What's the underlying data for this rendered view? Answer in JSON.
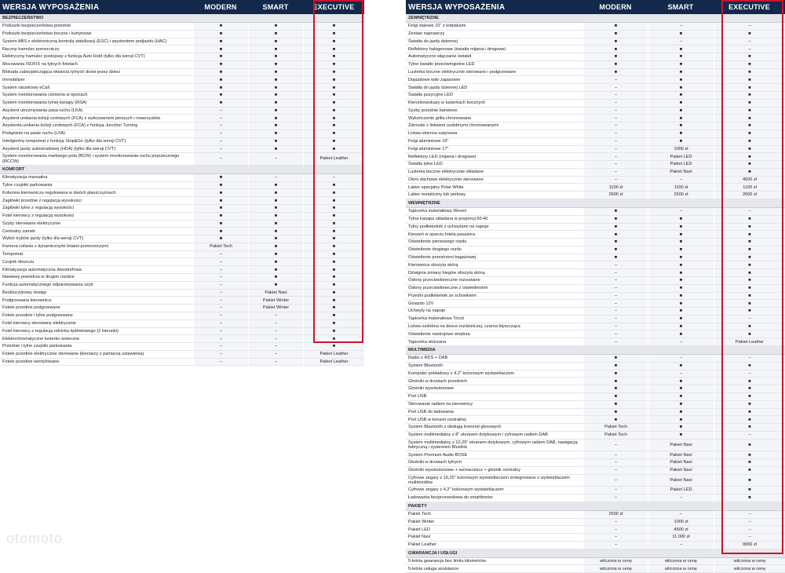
{
  "headers": [
    "WERSJA WYPOSAŻENIA",
    "MODERN",
    "SMART",
    "EXECUTIVE"
  ],
  "left_sections": [
    {
      "title": "BEZPIECZEŃSTWO",
      "rows": [
        [
          "Poduszki bezpieczeństwa przednie",
          "■",
          "■",
          "■"
        ],
        [
          "Poduszki bezpieczeństwa boczne i kurtynowe",
          "■",
          "■",
          "■"
        ],
        [
          "System ABS z elektroniczną kontrolą stabilizacji (ESC) i asystentem podjazdu (HAC)",
          "■",
          "■",
          "■"
        ],
        [
          "Ręczny hamulec pomocniczy",
          "■",
          "■",
          "■"
        ],
        [
          "Elektryczny hamulec postojowy z funkcją Auto Hold (tylko dla wersji CVT)",
          "■",
          "■",
          "■"
        ],
        [
          "Mocowania ISOFIX na tylnych fotelach",
          "■",
          "■",
          "■"
        ],
        [
          "Blokada zabezpieczająca otwarcia tylnych drzwi przez dzieci",
          "■",
          "■",
          "■"
        ],
        [
          "Immobilizer",
          "■",
          "■",
          "■"
        ],
        [
          "System ratunkowy eCall",
          "■",
          "■",
          "■"
        ],
        [
          "System monitorowania ciśnienia w oponach",
          "■",
          "■",
          "■"
        ],
        [
          "System monitorowania tylnej kanapy (RSA)",
          "■",
          "■",
          "■"
        ],
        [
          "Asystent utrzymywania pasa ruchu (LKA)",
          "–",
          "■",
          "■"
        ],
        [
          "Asystent unikania kolizji czołowych (FCA) z wykrywaniem pieszych i rowerzystów",
          "–",
          "■",
          "■"
        ],
        [
          "Asystenta unikania kolizji czołowych (FCA) z funkcją Junction Turning",
          "–",
          "■",
          "■"
        ],
        [
          "Podążanie na pasie ruchu (LFA)",
          "–",
          "■",
          "■"
        ],
        [
          "Inteligentny tempomat z funkcją Stop&Go (tylko dla wersji CVT)",
          "–",
          "■",
          "■"
        ],
        [
          "Asystent jazdy autostradowej (HDA) (tylko dla wersji CVT)",
          "–",
          "■",
          "■"
        ],
        [
          "System monitorowania martwego pola (BCW) i system monitorowania ruchu poprzecznego (RCCW)",
          "–",
          "–",
          "Pakiet Leather"
        ]
      ]
    },
    {
      "title": "KOMFORT",
      "rows": [
        [
          "Klimatyzacja manualna",
          "■",
          "–",
          "–"
        ],
        [
          "Tylne czujniki parkowania",
          "■",
          "■",
          "■"
        ],
        [
          "Kolumna kierownicza regulowana w dwóch płaszczyznach",
          "■",
          "■",
          "■"
        ],
        [
          "Zagłówki przednie z regulacją wysokości",
          "■",
          "■",
          "■"
        ],
        [
          "Zagłówki tylne z regulacją wysokości",
          "■",
          "■",
          "■"
        ],
        [
          "Fotel kierowcy z regulacją wysokości",
          "■",
          "■",
          "■"
        ],
        [
          "Szyby sterowane elektrycznie",
          "■",
          "■",
          "■"
        ],
        [
          "Centralny zamek",
          "■",
          "■",
          "■"
        ],
        [
          "Wybór trybów jazdy (tylko dla wersji CVT)",
          "■",
          "■",
          "■"
        ],
        [
          "Kamera cofania z dynamicznymi liniami pomocniczymi",
          "Pakiet Tech",
          "■",
          "■"
        ],
        [
          "Tempomat",
          "–",
          "■",
          "■"
        ],
        [
          "Czujnik deszczu",
          "–",
          "■",
          "■"
        ],
        [
          "Klimatyzacja automatyczna dwustrefowa",
          "–",
          "■",
          "■"
        ],
        [
          "Nawiewy powietrza w drugim rzędzie",
          "–",
          "■",
          "■"
        ],
        [
          "Funkcja automatycznego odparowywania szyb",
          "–",
          "■",
          "■"
        ],
        [
          "Bezkluczykowy dostęp",
          "–",
          "Pakiet Navi",
          "■"
        ],
        [
          "Podgrzewana kierownica",
          "–",
          "Pakiet Winter",
          "■"
        ],
        [
          "Fotele przednie podgrzewane",
          "–",
          "Pakiet Winter",
          "■"
        ],
        [
          "Fotele przednie i tylne podgrzewane",
          "–",
          "–",
          "■"
        ],
        [
          "Fotel kierowcy sterowany elektrycznie",
          "–",
          "–",
          "■"
        ],
        [
          "Fotel kierowcy z regulacją odcinka lędźwiowego (2 kierunki)",
          "–",
          "–",
          "■"
        ],
        [
          "Elektrochromatyczne lusterko wsteczne",
          "–",
          "–",
          "■"
        ],
        [
          "Przednie i tylne czujniki parkowania",
          "–",
          "–",
          "■"
        ],
        [
          "Fotele przednie elektrycznie sterowane (kierowcy z pamięcią ustawienia)",
          "–",
          "–",
          "Pakiet Leather"
        ],
        [
          "Fotele przednie wentylowane",
          "–",
          "–",
          "Pakiet Leather"
        ]
      ]
    }
  ],
  "right_sections": [
    {
      "title": "ZEWNĘTRZNE",
      "rows": [
        [
          "Felgi stalowe 15\" z kołpakami",
          "■",
          "–",
          "–"
        ],
        [
          "Zestaw naprawczy",
          "■",
          "■",
          "■"
        ],
        [
          "Światła do jazdy dziennej",
          "■",
          "–",
          "–"
        ],
        [
          "Reflektory halogenowe (światła mijania i drogowe)",
          "■",
          "■",
          "–"
        ],
        [
          "Automatyczne włączanie świateł",
          "■",
          "■",
          "■"
        ],
        [
          "Tylne światło przeciwmgielne LED",
          "■",
          "■",
          "■"
        ],
        [
          "Lusterka boczne elektrycznie sterowane i podgrzewane",
          "■",
          "■",
          "■"
        ],
        [
          "Dojazdowe koło zapasowe",
          "–",
          "■",
          "■"
        ],
        [
          "Światła do jazdy dziennej LED",
          "–",
          "■",
          "■"
        ],
        [
          "Światła pozycyjne LED",
          "–",
          "■",
          "■"
        ],
        [
          "Kierunkowskazy w lusterkach bocznych",
          "–",
          "■",
          "■"
        ],
        [
          "Szyby przednie barwione",
          "–",
          "■",
          "■"
        ],
        [
          "Wykończenie grilla chromowane",
          "–",
          "■",
          "■"
        ],
        [
          "Zderzaki z listwami ozdobnymi chromowanymi",
          "–",
          "■",
          "■"
        ],
        [
          "Listwa okienna satynowa",
          "–",
          "■",
          "■"
        ],
        [
          "Felgi aluminiowe 16\"",
          "–",
          "■",
          "■"
        ],
        [
          "Felgi aluminiowe 17\"",
          "–",
          "1000 zł",
          "■"
        ],
        [
          "Reflektory LED (mijania i drogowe)",
          "–",
          "Pakiet LED",
          "■"
        ],
        [
          "Światła tylne LED",
          "–",
          "Pakiet LED",
          "■"
        ],
        [
          "Lusterka boczne elektrycznie składane",
          "–",
          "Pakiet Navi",
          "■"
        ],
        [
          "Okno dachowe elektrycznie sterowane",
          "–",
          "–",
          "4500 zł"
        ],
        [
          "Lakier specjalny Polar White",
          "1100 zł",
          "1100 zł",
          "1100 zł"
        ],
        [
          "Lakier metaliczny lub perłowy",
          "2600 zł",
          "2600 zł",
          "2600 zł"
        ]
      ]
    },
    {
      "title": "WEWNĘTRZNE",
      "rows": [
        [
          "Tapicerka materiałowa Woven",
          "■",
          "–",
          "–"
        ],
        [
          "Tylna kanapa składana w proporcji 60:40",
          "■",
          "■",
          "■"
        ],
        [
          "Tylny podłokietnik z uchwytami na napoje",
          "■",
          "■",
          "■"
        ],
        [
          "Kieszeń w oparciu fotela pasażera",
          "■",
          "■",
          "■"
        ],
        [
          "Oświetlenie pierwszego rzędu",
          "■",
          "■",
          "■"
        ],
        [
          "Oświetlenie drugiego rzędu",
          "■",
          "■",
          "■"
        ],
        [
          "Oświetlenie przestrzeni bagażowej",
          "■",
          "■",
          "■"
        ],
        [
          "Kierownica obszyta skórą",
          "–",
          "■",
          "■"
        ],
        [
          "Dźwignia zmiany biegów obszyta skórą",
          "–",
          "■",
          "■"
        ],
        [
          "Osłony przeciwsłoneczne rozsuwane",
          "–",
          "■",
          "■"
        ],
        [
          "Osłony przeciwsłoneczne z oświetleniem",
          "–",
          "■",
          "■"
        ],
        [
          "Przedni podłokietnik ze schowkiem",
          "–",
          "■",
          "■"
        ],
        [
          "Gniazdo 12V",
          "–",
          "■",
          "■"
        ],
        [
          "Uchwyty na napoje",
          "–",
          "■",
          "■"
        ],
        [
          "Tapicerka materiałowa Tricot",
          "–",
          "■",
          "–"
        ],
        [
          "Listwa ozdobna na desce rozdzielczej, czarna błyszcząca",
          "–",
          "■",
          "■"
        ],
        [
          "Oświetlenie nastrojowe wnętrza",
          "–",
          "■",
          "■"
        ],
        [
          "Tapicerka skórzana",
          "–",
          "–",
          "Pakiet Leather"
        ]
      ]
    },
    {
      "title": "MULTIMEDIA",
      "rows": [
        [
          "Radio z RDS + DAB",
          "■",
          "–",
          "–"
        ],
        [
          "System Bluetooth",
          "■",
          "■",
          "■"
        ],
        [
          "Komputer pokładowy z 4,2\" kolorowym wyświetlaczem",
          "■",
          "–",
          "–"
        ],
        [
          "Głośniki w drzwiach przednich",
          "■",
          "■",
          "■"
        ],
        [
          "Głośniki wysokotonowe",
          "■",
          "■",
          "■"
        ],
        [
          "Port USB",
          "■",
          "■",
          "■"
        ],
        [
          "Sterowanie radiem na kierownicy",
          "■",
          "■",
          "■"
        ],
        [
          "Port USB do ładowania",
          "■",
          "■",
          "■"
        ],
        [
          "Port USB w konsoli centralnej",
          "■",
          "■",
          "■"
        ],
        [
          "System Bluetooth z obsługą komend głosowych",
          "Pakiet Tech",
          "■",
          "■"
        ],
        [
          "System multimedialny z 8\" ekranem dotykowym i cyfrowym radiem DAB",
          "Pakiet Tech",
          "■",
          "–"
        ],
        [
          "System multimedialny z 10,25\" ekranem dotykowym, cyfrowym radiem DAB, nawigacją fabryczną i systemem Bluelink",
          "–",
          "Pakiet Navi",
          "■"
        ],
        [
          "System Premium Audio BOSE",
          "–",
          "Pakiet Navi",
          "■"
        ],
        [
          "Głośniki w drzwiach tylnych",
          "–",
          "Pakiet Navi",
          "■"
        ],
        [
          "Głośniki wysokotonowe + wzmacniacz + głośnik centralny",
          "–",
          "Pakiet Navi",
          "■"
        ],
        [
          "Cyfrowe zegary z 10,25\" kolorowym wyświetlaczem zintegrowane z wyświetlaczem multimediów",
          "–",
          "Pakiet Navi",
          "■"
        ],
        [
          "Cyfrowe zegary z 4,2\" kolorowym wyświetlaczem",
          "–",
          "Pakiet LED",
          "■"
        ],
        [
          "Ładowarka bezprzewodowa do smartfonów",
          "–",
          "–",
          "■"
        ]
      ]
    },
    {
      "title": "PAKIETY",
      "rows": [
        [
          "Pakiet Tech",
          "2500 zł",
          "–",
          "–"
        ],
        [
          "Pakiet Winter",
          "–",
          "1000 zł",
          "–"
        ],
        [
          "Pakiet LED",
          "–",
          "4500 zł",
          "–"
        ],
        [
          "Pakiet Navi",
          "–",
          "11 000 zł",
          "–"
        ],
        [
          "Pakiet Leather",
          "–",
          "–",
          "9000 zł"
        ]
      ]
    },
    {
      "title": "GWARANCJA I USŁUGI",
      "rows": [
        [
          "5-letnia gwarancja bez limitu kilometrów",
          "wliczona w cenę",
          "wliczona w cenę",
          "wliczona w cenę"
        ],
        [
          "5-letnia usługa assistance",
          "wliczona w cenę",
          "wliczona w cenę",
          "wliczona w cenę"
        ]
      ]
    }
  ],
  "watermark": "otomoto",
  "colors": {
    "header_bg": "#13294b",
    "highlight": "#d0112b",
    "section_bg": "#e5e7ec"
  }
}
